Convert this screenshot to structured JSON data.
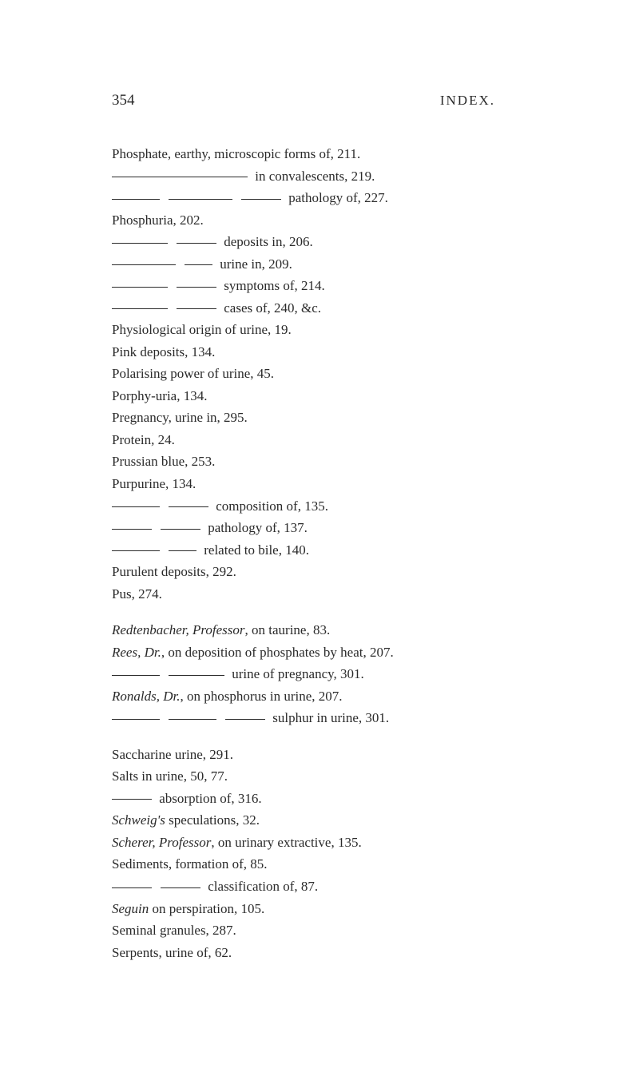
{
  "header": {
    "page_number": "354",
    "title": "INDEX."
  },
  "entries": [
    {
      "text": "Phosphate, earthy, microscopic forms of, 211.",
      "type": "plain"
    },
    {
      "text": " in convalescents, 219.",
      "type": "dashed",
      "dashes": [
        "d170"
      ]
    },
    {
      "text": " pathology of, 227.",
      "type": "dashed",
      "dashes": [
        "d60",
        "gap",
        "d80",
        "gap",
        "d50"
      ]
    },
    {
      "text": "Phosphuria, 202.",
      "type": "plain"
    },
    {
      "text": " deposits in, 206.",
      "type": "dashed",
      "dashes": [
        "d70",
        "gap",
        "d50"
      ]
    },
    {
      "text": " urine in, 209.",
      "type": "dashed",
      "dashes": [
        "d80",
        "gap",
        "d35"
      ]
    },
    {
      "text": " symptoms of, 214.",
      "type": "dashed",
      "dashes": [
        "d70",
        "gap",
        "d50"
      ]
    },
    {
      "text": " cases of, 240, &c.",
      "type": "dashed",
      "dashes": [
        "d70",
        "gap",
        "d50"
      ]
    },
    {
      "text": "Physiological origin of urine, 19.",
      "type": "plain"
    },
    {
      "text": "Pink deposits, 134.",
      "type": "plain"
    },
    {
      "text": "Polarising power of urine, 45.",
      "type": "plain"
    },
    {
      "text": "Porphy-uria, 134.",
      "type": "plain"
    },
    {
      "text": "Pregnancy, urine in, 295.",
      "type": "plain"
    },
    {
      "text": "Protein, 24.",
      "type": "plain"
    },
    {
      "text": "Prussian blue, 253.",
      "type": "plain"
    },
    {
      "text": "Purpurine, 134.",
      "type": "plain"
    },
    {
      "text": " composition of, 135.",
      "type": "dashed",
      "dashes": [
        "d60",
        "gap",
        "d50"
      ]
    },
    {
      "text": " pathology of, 137.",
      "type": "dashed",
      "dashes": [
        "d50",
        "gap",
        "d50"
      ]
    },
    {
      "text": " related to bile, 140.",
      "type": "dashed",
      "dashes": [
        "d60",
        "gap",
        "d35"
      ]
    },
    {
      "text": "Purulent deposits, 292.",
      "type": "plain"
    },
    {
      "text": "Pus, 274.",
      "type": "plain"
    },
    {
      "type": "break"
    },
    {
      "text_pre": "Redtenbacher, Professor",
      "text_post": ", on taurine, 83.",
      "type": "italic-lead"
    },
    {
      "text_pre": "Rees, Dr.",
      "text_post": ", on deposition of phosphates by heat, 207.",
      "type": "italic-lead"
    },
    {
      "text": " urine of pregnancy, 301.",
      "type": "dashed",
      "dashes": [
        "d60",
        "gap",
        "d70"
      ]
    },
    {
      "text_pre": "Ronalds, Dr.",
      "text_post": ", on phosphorus in urine, 207.",
      "type": "italic-lead"
    },
    {
      "text": " sulphur in urine, 301.",
      "type": "dashed",
      "dashes": [
        "d60",
        "gap",
        "d60",
        "gap",
        "d50"
      ]
    },
    {
      "type": "break"
    },
    {
      "text": "Saccharine urine, 291.",
      "type": "plain"
    },
    {
      "text": "Salts in urine, 50, 77.",
      "type": "plain"
    },
    {
      "text": " absorption of, 316.",
      "type": "dashed",
      "dashes": [
        "d50"
      ]
    },
    {
      "text_pre": "Schweig's",
      "text_post": " speculations, 32.",
      "type": "italic-lead"
    },
    {
      "text_pre": "Scherer, Professor",
      "text_post": ", on urinary extractive, 135.",
      "type": "italic-lead"
    },
    {
      "text": "Sediments, formation of, 85.",
      "type": "plain"
    },
    {
      "text": " classification of, 87.",
      "type": "dashed",
      "dashes": [
        "d50",
        "gap",
        "d50"
      ]
    },
    {
      "text_pre": "Seguin",
      "text_post": " on perspiration, 105.",
      "type": "italic-lead"
    },
    {
      "text": "Seminal granules, 287.",
      "type": "plain"
    },
    {
      "text": "Serpents, urine of, 62.",
      "type": "plain"
    }
  ]
}
